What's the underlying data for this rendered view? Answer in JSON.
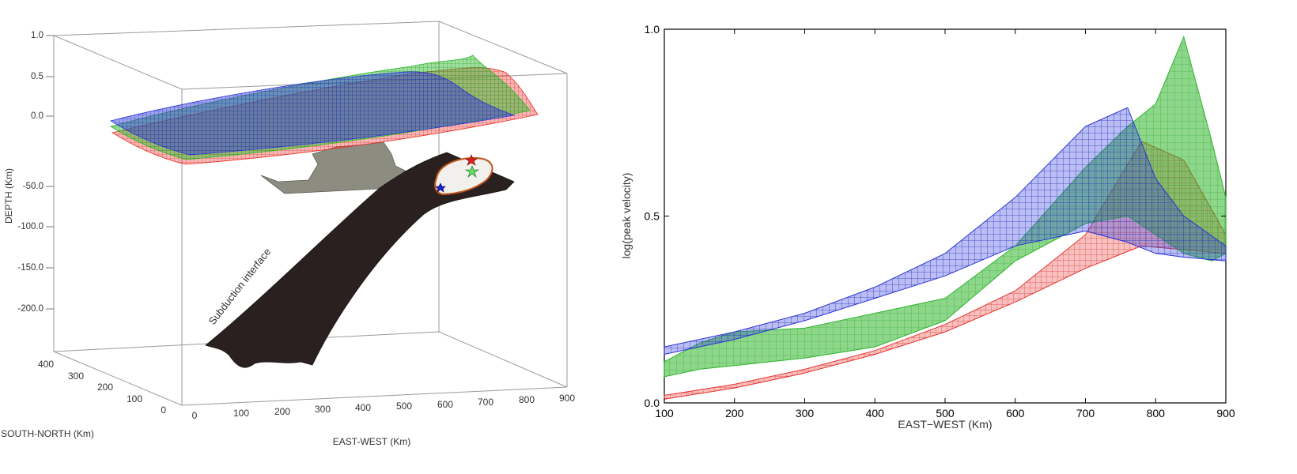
{
  "chart_data": [
    {
      "type": "surface3d",
      "zlabel": "DEPTH (Km)",
      "xlabel": "EAST-WEST (Km)",
      "ylabel": "SOUTH-NORTH (Km)",
      "z_ticks": [
        "1.0",
        "0.5",
        "0.0",
        "-50.0",
        "-100.0",
        "-150.0",
        "-200.0"
      ],
      "x_ticks": [
        "0",
        "100",
        "200",
        "300",
        "400",
        "500",
        "600",
        "700",
        "800",
        "900"
      ],
      "y_ticks": [
        "400",
        "300",
        "200",
        "100",
        "0"
      ],
      "annotation": "Subduction interface",
      "series_colors": {
        "red": "#e8322b",
        "green": "#2db52a",
        "blue": "#2a34d8"
      },
      "slab_color": "#2a2020",
      "fault_color": "#8c8c80",
      "rupture_outline_color": "#c0561c",
      "stars": [
        {
          "color": "#e02020",
          "name": "red-star"
        },
        {
          "color": "#60e060",
          "name": "green-star"
        },
        {
          "color": "#2020c8",
          "name": "blue-star"
        }
      ]
    },
    {
      "type": "mesh-band",
      "xlabel": "EAST−WEST (Km)",
      "ylabel": "log(peak velocity)",
      "x_ticks": [
        "100",
        "200",
        "300",
        "400",
        "500",
        "600",
        "700",
        "800",
        "900"
      ],
      "y_ticks": [
        "0.0",
        "0.5",
        "1.0"
      ],
      "xlim": [
        100,
        900
      ],
      "ylim": [
        0,
        1
      ],
      "series": [
        {
          "color": "#e8322b",
          "x": [
            100,
            200,
            300,
            400,
            500,
            600,
            700,
            780,
            840,
            900
          ],
          "lower": [
            0.01,
            0.04,
            0.08,
            0.13,
            0.19,
            0.27,
            0.36,
            0.42,
            0.41,
            0.4
          ],
          "upper": [
            0.02,
            0.05,
            0.09,
            0.14,
            0.21,
            0.3,
            0.45,
            0.7,
            0.65,
            0.45
          ]
        },
        {
          "color": "#2db52a",
          "x": [
            100,
            150,
            200,
            300,
            400,
            500,
            600,
            700,
            760,
            800,
            840,
            880,
            900
          ],
          "lower": [
            0.07,
            0.09,
            0.1,
            0.12,
            0.15,
            0.22,
            0.38,
            0.48,
            0.5,
            0.45,
            0.4,
            0.38,
            0.4
          ],
          "upper": [
            0.11,
            0.16,
            0.19,
            0.2,
            0.24,
            0.28,
            0.42,
            0.63,
            0.74,
            0.8,
            0.98,
            0.7,
            0.55
          ]
        },
        {
          "color": "#2a34d8",
          "x": [
            100,
            200,
            300,
            400,
            500,
            600,
            700,
            760,
            800,
            840,
            900
          ],
          "lower": [
            0.13,
            0.17,
            0.22,
            0.28,
            0.34,
            0.42,
            0.46,
            0.43,
            0.4,
            0.39,
            0.38
          ],
          "upper": [
            0.15,
            0.19,
            0.24,
            0.31,
            0.4,
            0.55,
            0.74,
            0.79,
            0.6,
            0.5,
            0.42
          ]
        }
      ]
    }
  ]
}
